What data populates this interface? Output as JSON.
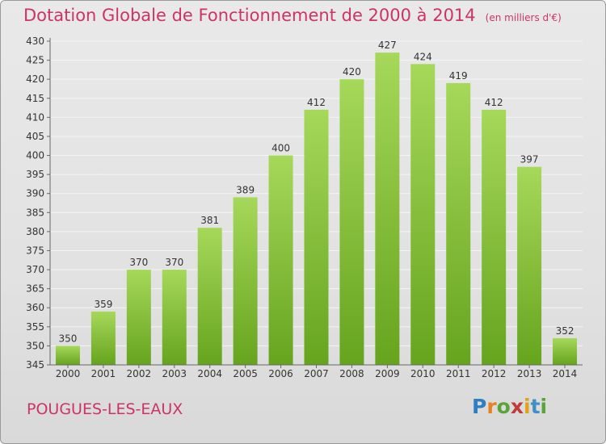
{
  "header": {
    "title": "Dotation Globale de Fonctionnement de 2000 à 2014",
    "unit": "(en milliers d'€)"
  },
  "footer": {
    "commune": "POUGUES-LES-EAUX",
    "logo": "Proxiti"
  },
  "colors": {
    "title": "#cc3366",
    "bar_light": "#a6d85a",
    "bar_dark": "#66a41e"
  },
  "chart_data": {
    "type": "bar",
    "title": "Dotation Globale de Fonctionnement de 2000 à 2014",
    "subtitle": "(en milliers d'€)",
    "xlabel": "",
    "ylabel": "",
    "categories": [
      "2000",
      "2001",
      "2002",
      "2003",
      "2004",
      "2005",
      "2006",
      "2007",
      "2008",
      "2009",
      "2010",
      "2011",
      "2012",
      "2013",
      "2014"
    ],
    "values": [
      350,
      359,
      370,
      370,
      381,
      389,
      400,
      412,
      420,
      427,
      424,
      419,
      412,
      397,
      352
    ],
    "ylim": [
      345,
      430
    ],
    "ytick_step": 5,
    "grid": true,
    "data_labels": true
  }
}
